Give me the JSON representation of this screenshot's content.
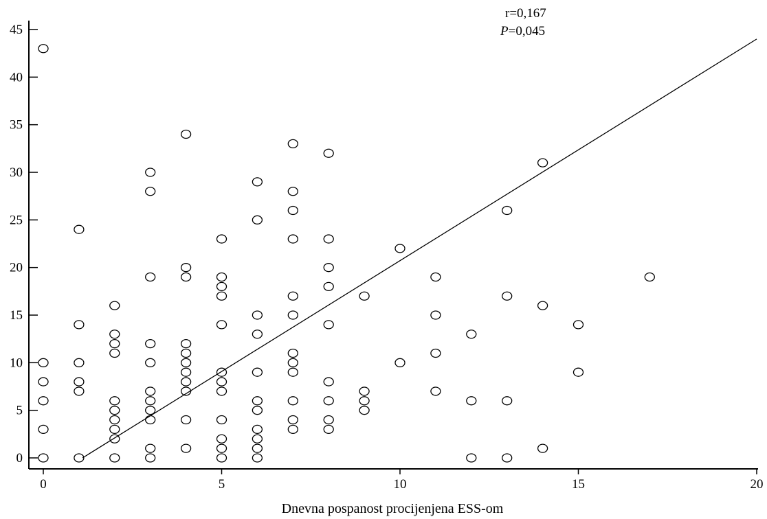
{
  "chart_data": {
    "type": "scatter",
    "title": "",
    "xlabel": "Dnevna pospanost procijenjena ESS-om",
    "ylabel": "",
    "xlim": [
      0,
      20
    ],
    "ylim": [
      0,
      45
    ],
    "xticks": [
      0,
      5,
      10,
      15,
      20
    ],
    "yticks": [
      0,
      5,
      10,
      15,
      20,
      25,
      30,
      35,
      40,
      45
    ],
    "grid": false,
    "legend": "none",
    "annotations": {
      "r": "r=0,167",
      "p_symbol": "P",
      "p_value": "=0,045"
    },
    "regression_line": {
      "x": [
        1.1,
        20
      ],
      "y": [
        0,
        44
      ]
    },
    "points": [
      {
        "x": 0,
        "y": 43
      },
      {
        "x": 0,
        "y": 10
      },
      {
        "x": 0,
        "y": 8
      },
      {
        "x": 0,
        "y": 6
      },
      {
        "x": 0,
        "y": 3
      },
      {
        "x": 0,
        "y": 0
      },
      {
        "x": 1,
        "y": 24
      },
      {
        "x": 1,
        "y": 14
      },
      {
        "x": 1,
        "y": 10
      },
      {
        "x": 1,
        "y": 8
      },
      {
        "x": 1,
        "y": 7
      },
      {
        "x": 1,
        "y": 0
      },
      {
        "x": 2,
        "y": 16
      },
      {
        "x": 2,
        "y": 13
      },
      {
        "x": 2,
        "y": 12
      },
      {
        "x": 2,
        "y": 11
      },
      {
        "x": 2,
        "y": 6
      },
      {
        "x": 2,
        "y": 5
      },
      {
        "x": 2,
        "y": 4
      },
      {
        "x": 2,
        "y": 3
      },
      {
        "x": 2,
        "y": 2
      },
      {
        "x": 2,
        "y": 0
      },
      {
        "x": 3,
        "y": 30
      },
      {
        "x": 3,
        "y": 28
      },
      {
        "x": 3,
        "y": 19
      },
      {
        "x": 3,
        "y": 12
      },
      {
        "x": 3,
        "y": 10
      },
      {
        "x": 3,
        "y": 7
      },
      {
        "x": 3,
        "y": 6
      },
      {
        "x": 3,
        "y": 5
      },
      {
        "x": 3,
        "y": 4
      },
      {
        "x": 3,
        "y": 1
      },
      {
        "x": 3,
        "y": 0
      },
      {
        "x": 4,
        "y": 34
      },
      {
        "x": 4,
        "y": 20
      },
      {
        "x": 4,
        "y": 19
      },
      {
        "x": 4,
        "y": 12
      },
      {
        "x": 4,
        "y": 11
      },
      {
        "x": 4,
        "y": 10
      },
      {
        "x": 4,
        "y": 9
      },
      {
        "x": 4,
        "y": 8
      },
      {
        "x": 4,
        "y": 7
      },
      {
        "x": 4,
        "y": 4
      },
      {
        "x": 4,
        "y": 1
      },
      {
        "x": 5,
        "y": 23
      },
      {
        "x": 5,
        "y": 19
      },
      {
        "x": 5,
        "y": 18
      },
      {
        "x": 5,
        "y": 17
      },
      {
        "x": 5,
        "y": 14
      },
      {
        "x": 5,
        "y": 9
      },
      {
        "x": 5,
        "y": 8
      },
      {
        "x": 5,
        "y": 7
      },
      {
        "x": 5,
        "y": 4
      },
      {
        "x": 5,
        "y": 2
      },
      {
        "x": 5,
        "y": 1
      },
      {
        "x": 5,
        "y": 0
      },
      {
        "x": 6,
        "y": 29
      },
      {
        "x": 6,
        "y": 25
      },
      {
        "x": 6,
        "y": 15
      },
      {
        "x": 6,
        "y": 13
      },
      {
        "x": 6,
        "y": 9
      },
      {
        "x": 6,
        "y": 6
      },
      {
        "x": 6,
        "y": 5
      },
      {
        "x": 6,
        "y": 3
      },
      {
        "x": 6,
        "y": 2
      },
      {
        "x": 6,
        "y": 1
      },
      {
        "x": 6,
        "y": 0
      },
      {
        "x": 7,
        "y": 33
      },
      {
        "x": 7,
        "y": 28
      },
      {
        "x": 7,
        "y": 26
      },
      {
        "x": 7,
        "y": 23
      },
      {
        "x": 7,
        "y": 17
      },
      {
        "x": 7,
        "y": 15
      },
      {
        "x": 7,
        "y": 11
      },
      {
        "x": 7,
        "y": 10
      },
      {
        "x": 7,
        "y": 9
      },
      {
        "x": 7,
        "y": 6
      },
      {
        "x": 7,
        "y": 4
      },
      {
        "x": 7,
        "y": 3
      },
      {
        "x": 8,
        "y": 32
      },
      {
        "x": 8,
        "y": 23
      },
      {
        "x": 8,
        "y": 20
      },
      {
        "x": 8,
        "y": 18
      },
      {
        "x": 8,
        "y": 14
      },
      {
        "x": 8,
        "y": 8
      },
      {
        "x": 8,
        "y": 6
      },
      {
        "x": 8,
        "y": 4
      },
      {
        "x": 8,
        "y": 3
      },
      {
        "x": 9,
        "y": 17
      },
      {
        "x": 9,
        "y": 7
      },
      {
        "x": 9,
        "y": 6
      },
      {
        "x": 9,
        "y": 5
      },
      {
        "x": 10,
        "y": 22
      },
      {
        "x": 10,
        "y": 10
      },
      {
        "x": 11,
        "y": 19
      },
      {
        "x": 11,
        "y": 15
      },
      {
        "x": 11,
        "y": 11
      },
      {
        "x": 11,
        "y": 7
      },
      {
        "x": 12,
        "y": 13
      },
      {
        "x": 12,
        "y": 6
      },
      {
        "x": 12,
        "y": 0
      },
      {
        "x": 13,
        "y": 26
      },
      {
        "x": 13,
        "y": 17
      },
      {
        "x": 13,
        "y": 6
      },
      {
        "x": 13,
        "y": 0
      },
      {
        "x": 14,
        "y": 31
      },
      {
        "x": 14,
        "y": 16
      },
      {
        "x": 14,
        "y": 1
      },
      {
        "x": 15,
        "y": 14
      },
      {
        "x": 15,
        "y": 9
      },
      {
        "x": 17,
        "y": 19
      }
    ]
  }
}
